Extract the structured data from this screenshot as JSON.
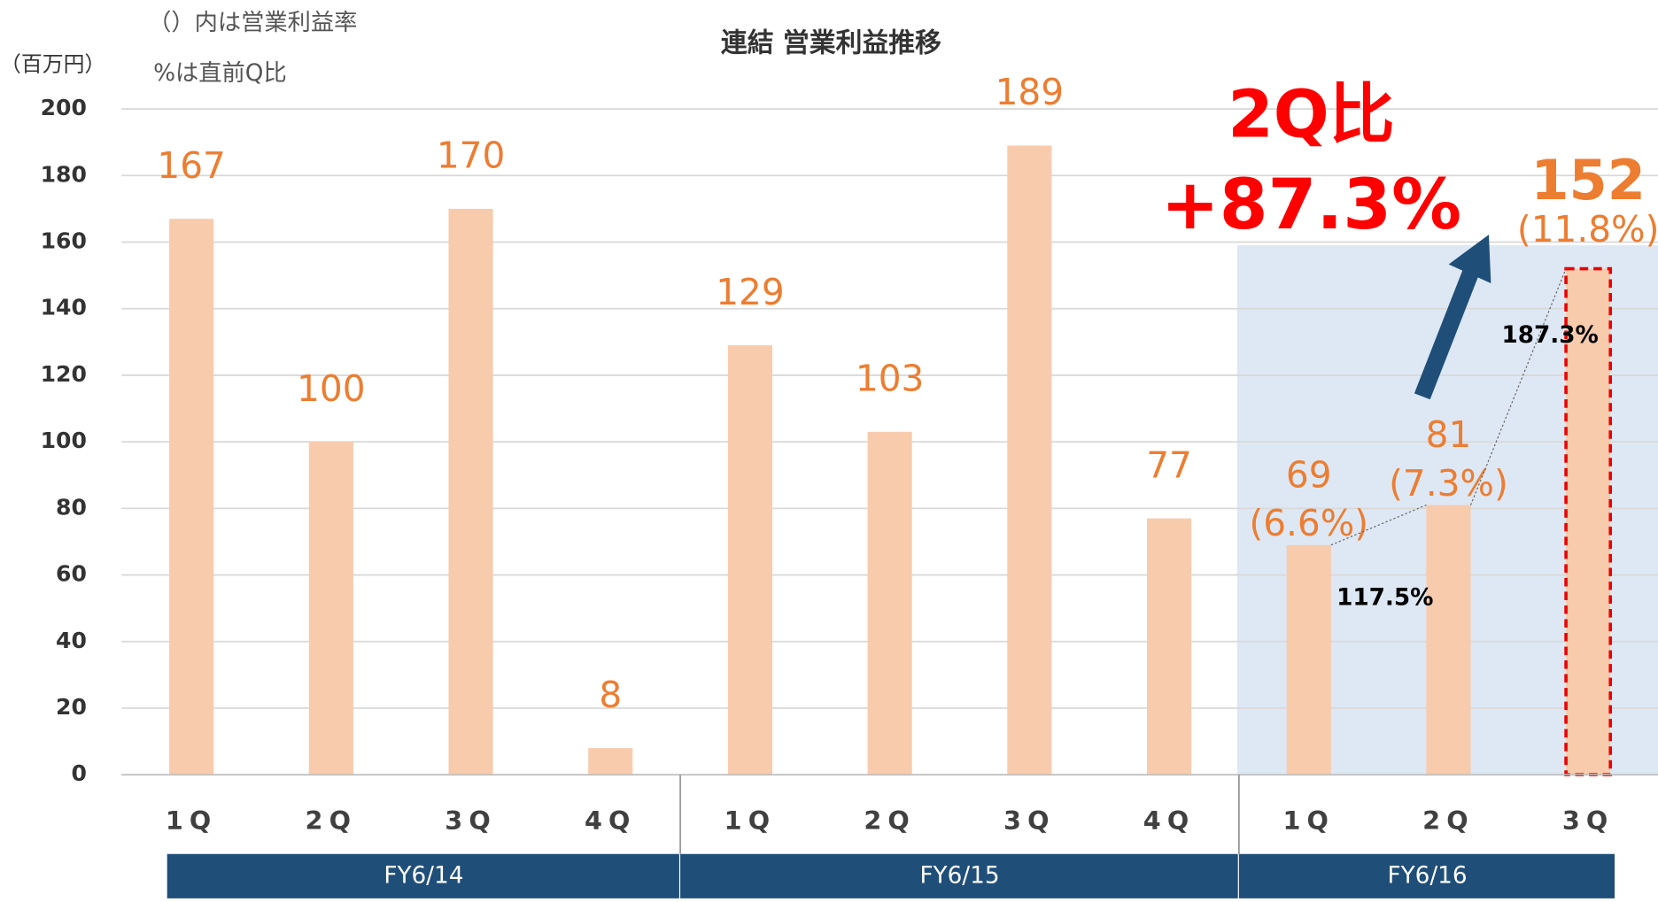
{
  "chart_data": {
    "type": "bar",
    "title": "連結 営業利益推移",
    "unit_label": "（百万円）",
    "notes": [
      "（）内は営業利益率",
      "%は直前Q比"
    ],
    "categories": [
      "1Q",
      "2Q",
      "3Q",
      "4Q",
      "1Q",
      "2Q",
      "3Q",
      "4Q",
      "1Q",
      "2Q",
      "3Q"
    ],
    "values": [
      167,
      100,
      170,
      8,
      129,
      103,
      189,
      77,
      69,
      81,
      152
    ],
    "color": "#f8cbad",
    "label_color": "#ed7d31",
    "groups": [
      {
        "label": "FY6/14",
        "count": 4
      },
      {
        "label": "FY6/15",
        "count": 4
      },
      {
        "label": "FY6/16",
        "count": 3
      }
    ],
    "margin_labels": [
      null,
      null,
      null,
      null,
      null,
      null,
      null,
      null,
      "(6.6%)",
      "(7.3%)",
      "(11.8%)"
    ],
    "growth_labels": [
      "117.5%",
      "187.3%"
    ],
    "headline": [
      "2Q比",
      "+87.3%"
    ],
    "ylim": [
      0,
      200
    ],
    "yticks": [
      0,
      20,
      40,
      60,
      80,
      100,
      120,
      140,
      160,
      180,
      200
    ],
    "grid": true
  }
}
